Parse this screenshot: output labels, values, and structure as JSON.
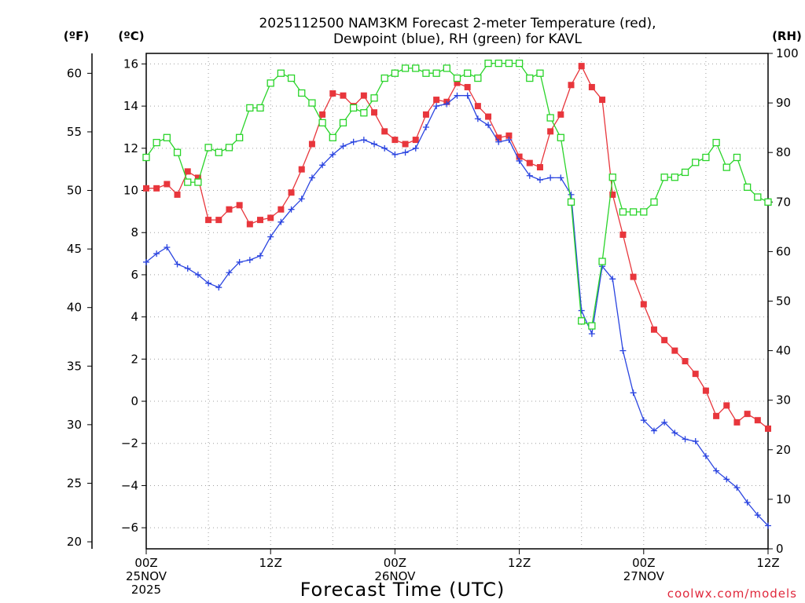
{
  "chart_data": {
    "type": "line",
    "title_line1": "2025112500 NAM3KM Forecast 2-meter Temperature (red),",
    "title_line2": "Dewpoint (blue), RH (green) for KAVL",
    "units": {
      "fahrenheit": "(ºF)",
      "celsius": "(ºC)",
      "rh": "(RH)"
    },
    "xlabel": "Forecast Time (UTC)",
    "credit": "coolwx.com/models",
    "x_range_hours": [
      0,
      60
    ],
    "x_ticks": [
      {
        "hour": 0,
        "lines": [
          "00Z",
          "25NOV",
          "2025"
        ]
      },
      {
        "hour": 12,
        "lines": [
          "12Z"
        ]
      },
      {
        "hour": 24,
        "lines": [
          "00Z",
          "26NOV"
        ]
      },
      {
        "hour": 36,
        "lines": [
          "12Z"
        ]
      },
      {
        "hour": 48,
        "lines": [
          "00Z",
          "27NOV"
        ]
      },
      {
        "hour": 60,
        "lines": [
          "12Z"
        ]
      }
    ],
    "celsius_axis": {
      "range": [
        -7,
        16.5
      ],
      "ticks": [
        "-6",
        "-4",
        "-2",
        "0",
        "2",
        "4",
        "6",
        "8",
        "10",
        "12",
        "14",
        "16"
      ]
    },
    "fahrenheit_axis": {
      "range": [
        19.4,
        61.7
      ],
      "ticks": [
        "20",
        "25",
        "30",
        "35",
        "40",
        "45",
        "50",
        "55",
        "60"
      ]
    },
    "rh_axis": {
      "range": [
        0,
        100
      ],
      "ticks": [
        "0",
        "10",
        "20",
        "30",
        "40",
        "50",
        "60",
        "70",
        "80",
        "90",
        "100"
      ]
    },
    "series": [
      {
        "name": "Temperature",
        "color": "#e8363c",
        "marker": "filled-square",
        "unit": "C",
        "hours": [
          0,
          1,
          2,
          3,
          4,
          5,
          6,
          7,
          8,
          9,
          10,
          11,
          12,
          13,
          14,
          15,
          16,
          17,
          18,
          19,
          20,
          21,
          22,
          23,
          24,
          25,
          26,
          27,
          28,
          29,
          30,
          31,
          32,
          33,
          34,
          35,
          36,
          37,
          38,
          39,
          40,
          41,
          42,
          43,
          44,
          45,
          46,
          47,
          48,
          49,
          50,
          51,
          52,
          53,
          54,
          55,
          56,
          57,
          58,
          59,
          60
        ],
        "values": [
          10.1,
          10.1,
          10.3,
          9.8,
          10.9,
          10.6,
          8.6,
          8.6,
          9.1,
          9.3,
          8.4,
          8.6,
          8.7,
          9.1,
          9.9,
          11.0,
          12.2,
          13.6,
          14.6,
          14.5,
          14.0,
          14.5,
          13.7,
          12.8,
          12.4,
          12.2,
          12.4,
          13.6,
          14.3,
          14.2,
          15.1,
          14.9,
          14.0,
          13.5,
          12.5,
          12.6,
          11.6,
          11.3,
          11.1,
          12.8,
          13.6,
          15.0,
          15.9,
          14.9,
          14.3,
          9.8,
          7.9,
          5.9,
          4.6,
          3.4,
          2.9,
          2.4,
          1.9,
          1.3,
          0.5,
          -0.7,
          -0.2,
          -1.0,
          -0.6,
          -0.9,
          -1.3
        ]
      },
      {
        "name": "Dewpoint",
        "color": "#2a44e0",
        "marker": "plus",
        "unit": "C",
        "hours": [
          0,
          1,
          2,
          3,
          4,
          5,
          6,
          7,
          8,
          9,
          10,
          11,
          12,
          13,
          14,
          15,
          16,
          17,
          18,
          19,
          20,
          21,
          22,
          23,
          24,
          25,
          26,
          27,
          28,
          29,
          30,
          31,
          32,
          33,
          34,
          35,
          36,
          37,
          38,
          39,
          40,
          41,
          42,
          43,
          44,
          45,
          46,
          47,
          48,
          49,
          50,
          51,
          52,
          53,
          54,
          55,
          56,
          57,
          58,
          59,
          60
        ],
        "values": [
          6.6,
          7.0,
          7.3,
          6.5,
          6.3,
          6.0,
          5.6,
          5.4,
          6.1,
          6.6,
          6.7,
          6.9,
          7.8,
          8.5,
          9.1,
          9.6,
          10.6,
          11.2,
          11.7,
          12.1,
          12.3,
          12.4,
          12.2,
          12.0,
          11.7,
          11.8,
          12.0,
          13.0,
          14.0,
          14.1,
          14.5,
          14.5,
          13.4,
          13.1,
          12.3,
          12.4,
          11.4,
          10.7,
          10.5,
          10.6,
          10.6,
          9.8,
          4.3,
          3.2,
          6.4,
          5.8,
          2.4,
          0.4,
          -0.9,
          -1.4,
          -1.0,
          -1.5,
          -1.8,
          -1.9,
          -2.6,
          -3.3,
          -3.7,
          -4.1,
          -4.8,
          -5.4,
          -5.9
        ]
      },
      {
        "name": "RH",
        "color": "#2ad42a",
        "marker": "open-square",
        "unit": "%",
        "hours": [
          0,
          1,
          2,
          3,
          4,
          5,
          6,
          7,
          8,
          9,
          10,
          11,
          12,
          13,
          14,
          15,
          16,
          17,
          18,
          19,
          20,
          21,
          22,
          23,
          24,
          25,
          26,
          27,
          28,
          29,
          30,
          31,
          32,
          33,
          34,
          35,
          36,
          37,
          38,
          39,
          40,
          41,
          42,
          43,
          44,
          45,
          46,
          47,
          48,
          49,
          50,
          51,
          52,
          53,
          54,
          55,
          56,
          57,
          58,
          59,
          60
        ],
        "values": [
          79,
          82,
          83,
          80,
          74,
          74,
          81,
          80,
          81,
          83,
          89,
          89,
          94,
          96,
          95,
          92,
          90,
          86,
          83,
          86,
          89,
          88,
          91,
          95,
          96,
          97,
          97,
          96,
          96,
          97,
          95,
          96,
          95,
          98,
          98,
          98,
          98,
          95,
          96,
          87,
          83,
          70,
          46,
          45,
          58,
          75,
          68,
          68,
          68,
          70,
          75,
          75,
          76,
          78,
          79,
          82,
          77,
          79,
          73,
          71,
          70
        ]
      }
    ]
  }
}
